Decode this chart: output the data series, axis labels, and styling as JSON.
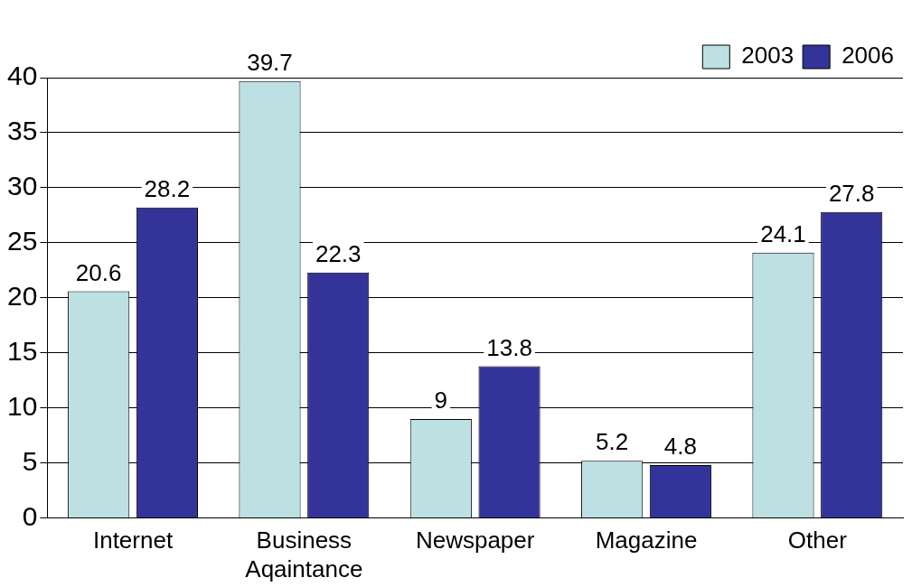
{
  "chart_data": {
    "type": "bar",
    "categories": [
      "Internet",
      "Business Aqaintance",
      "Newspaper",
      "Magazine",
      "Other"
    ],
    "series": [
      {
        "name": "2003",
        "color": "#bde0e3",
        "values": [
          20.6,
          39.7,
          9,
          5.2,
          24.1
        ]
      },
      {
        "name": "2006",
        "color": "#333399",
        "values": [
          28.2,
          22.3,
          13.8,
          4.8,
          27.8
        ]
      }
    ],
    "ylim": [
      0,
      40
    ],
    "yticks": [
      0,
      5,
      10,
      15,
      20,
      25,
      30,
      35,
      40
    ],
    "grid": "y",
    "legend": "top right",
    "data_labels": true
  }
}
